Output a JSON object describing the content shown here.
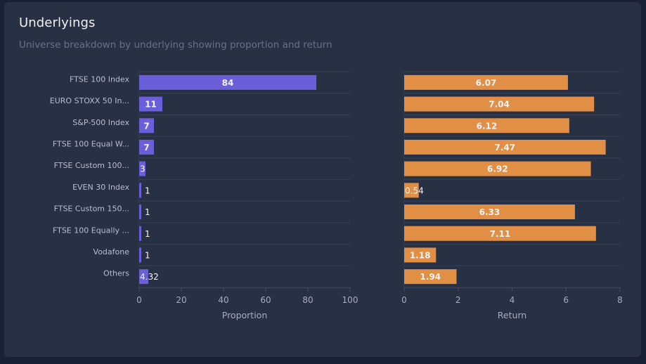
{
  "card": {
    "title": "Underlyings",
    "subtitle": "Universe breakdown by underlying showing proportion and return"
  },
  "colors": {
    "proportion_bar": "#6a5fd8",
    "return_bar": "#e08f45",
    "grid": "#343d53",
    "axis": "#3f485e",
    "tick_text": "#a7adbd",
    "label_text": "#b9bece",
    "value_text": "#f4f4f8"
  },
  "chart_data": [
    {
      "type": "bar",
      "orientation": "horizontal",
      "categories": [
        "FTSE 100 Index",
        "EURO STOXX 50 In...",
        "S&P-500 Index",
        "FTSE 100 Equal W...",
        "FTSE Custom 100...",
        "EVEN 30 Index",
        "FTSE Custom 150...",
        "FTSE 100 Equally ...",
        "Vodafone",
        "Others"
      ],
      "values": [
        84,
        11,
        7,
        7,
        3,
        1,
        1,
        1,
        1,
        4.32
      ],
      "value_labels": [
        "84",
        "11",
        "7",
        "7",
        "3",
        "1",
        "1",
        "1",
        "1",
        "4.32"
      ],
      "title": "",
      "xlabel": "Proportion",
      "ylabel": "",
      "xlim": [
        0,
        100
      ],
      "xticks": [
        0,
        20,
        40,
        60,
        80,
        100
      ],
      "grid": "horizontal-bands",
      "legend": "none"
    },
    {
      "type": "bar",
      "orientation": "horizontal",
      "categories": [
        "FTSE 100 Index",
        "EURO STOXX 50 In...",
        "S&P-500 Index",
        "FTSE 100 Equal W...",
        "FTSE Custom 100...",
        "EVEN 30 Index",
        "FTSE Custom 150...",
        "FTSE 100 Equally ...",
        "Vodafone",
        "Others"
      ],
      "values": [
        6.07,
        7.04,
        6.12,
        7.47,
        6.92,
        0.54,
        6.33,
        7.11,
        1.18,
        1.94
      ],
      "value_labels": [
        "6.07",
        "7.04",
        "6.12",
        "7.47",
        "6.92",
        "0.54",
        "6.33",
        "7.11",
        "1.18",
        "1.94"
      ],
      "title": "",
      "xlabel": "Return",
      "ylabel": "",
      "xlim": [
        0,
        8
      ],
      "xticks": [
        0,
        2,
        4,
        6,
        8
      ],
      "grid": "horizontal-bands",
      "legend": "none"
    }
  ]
}
